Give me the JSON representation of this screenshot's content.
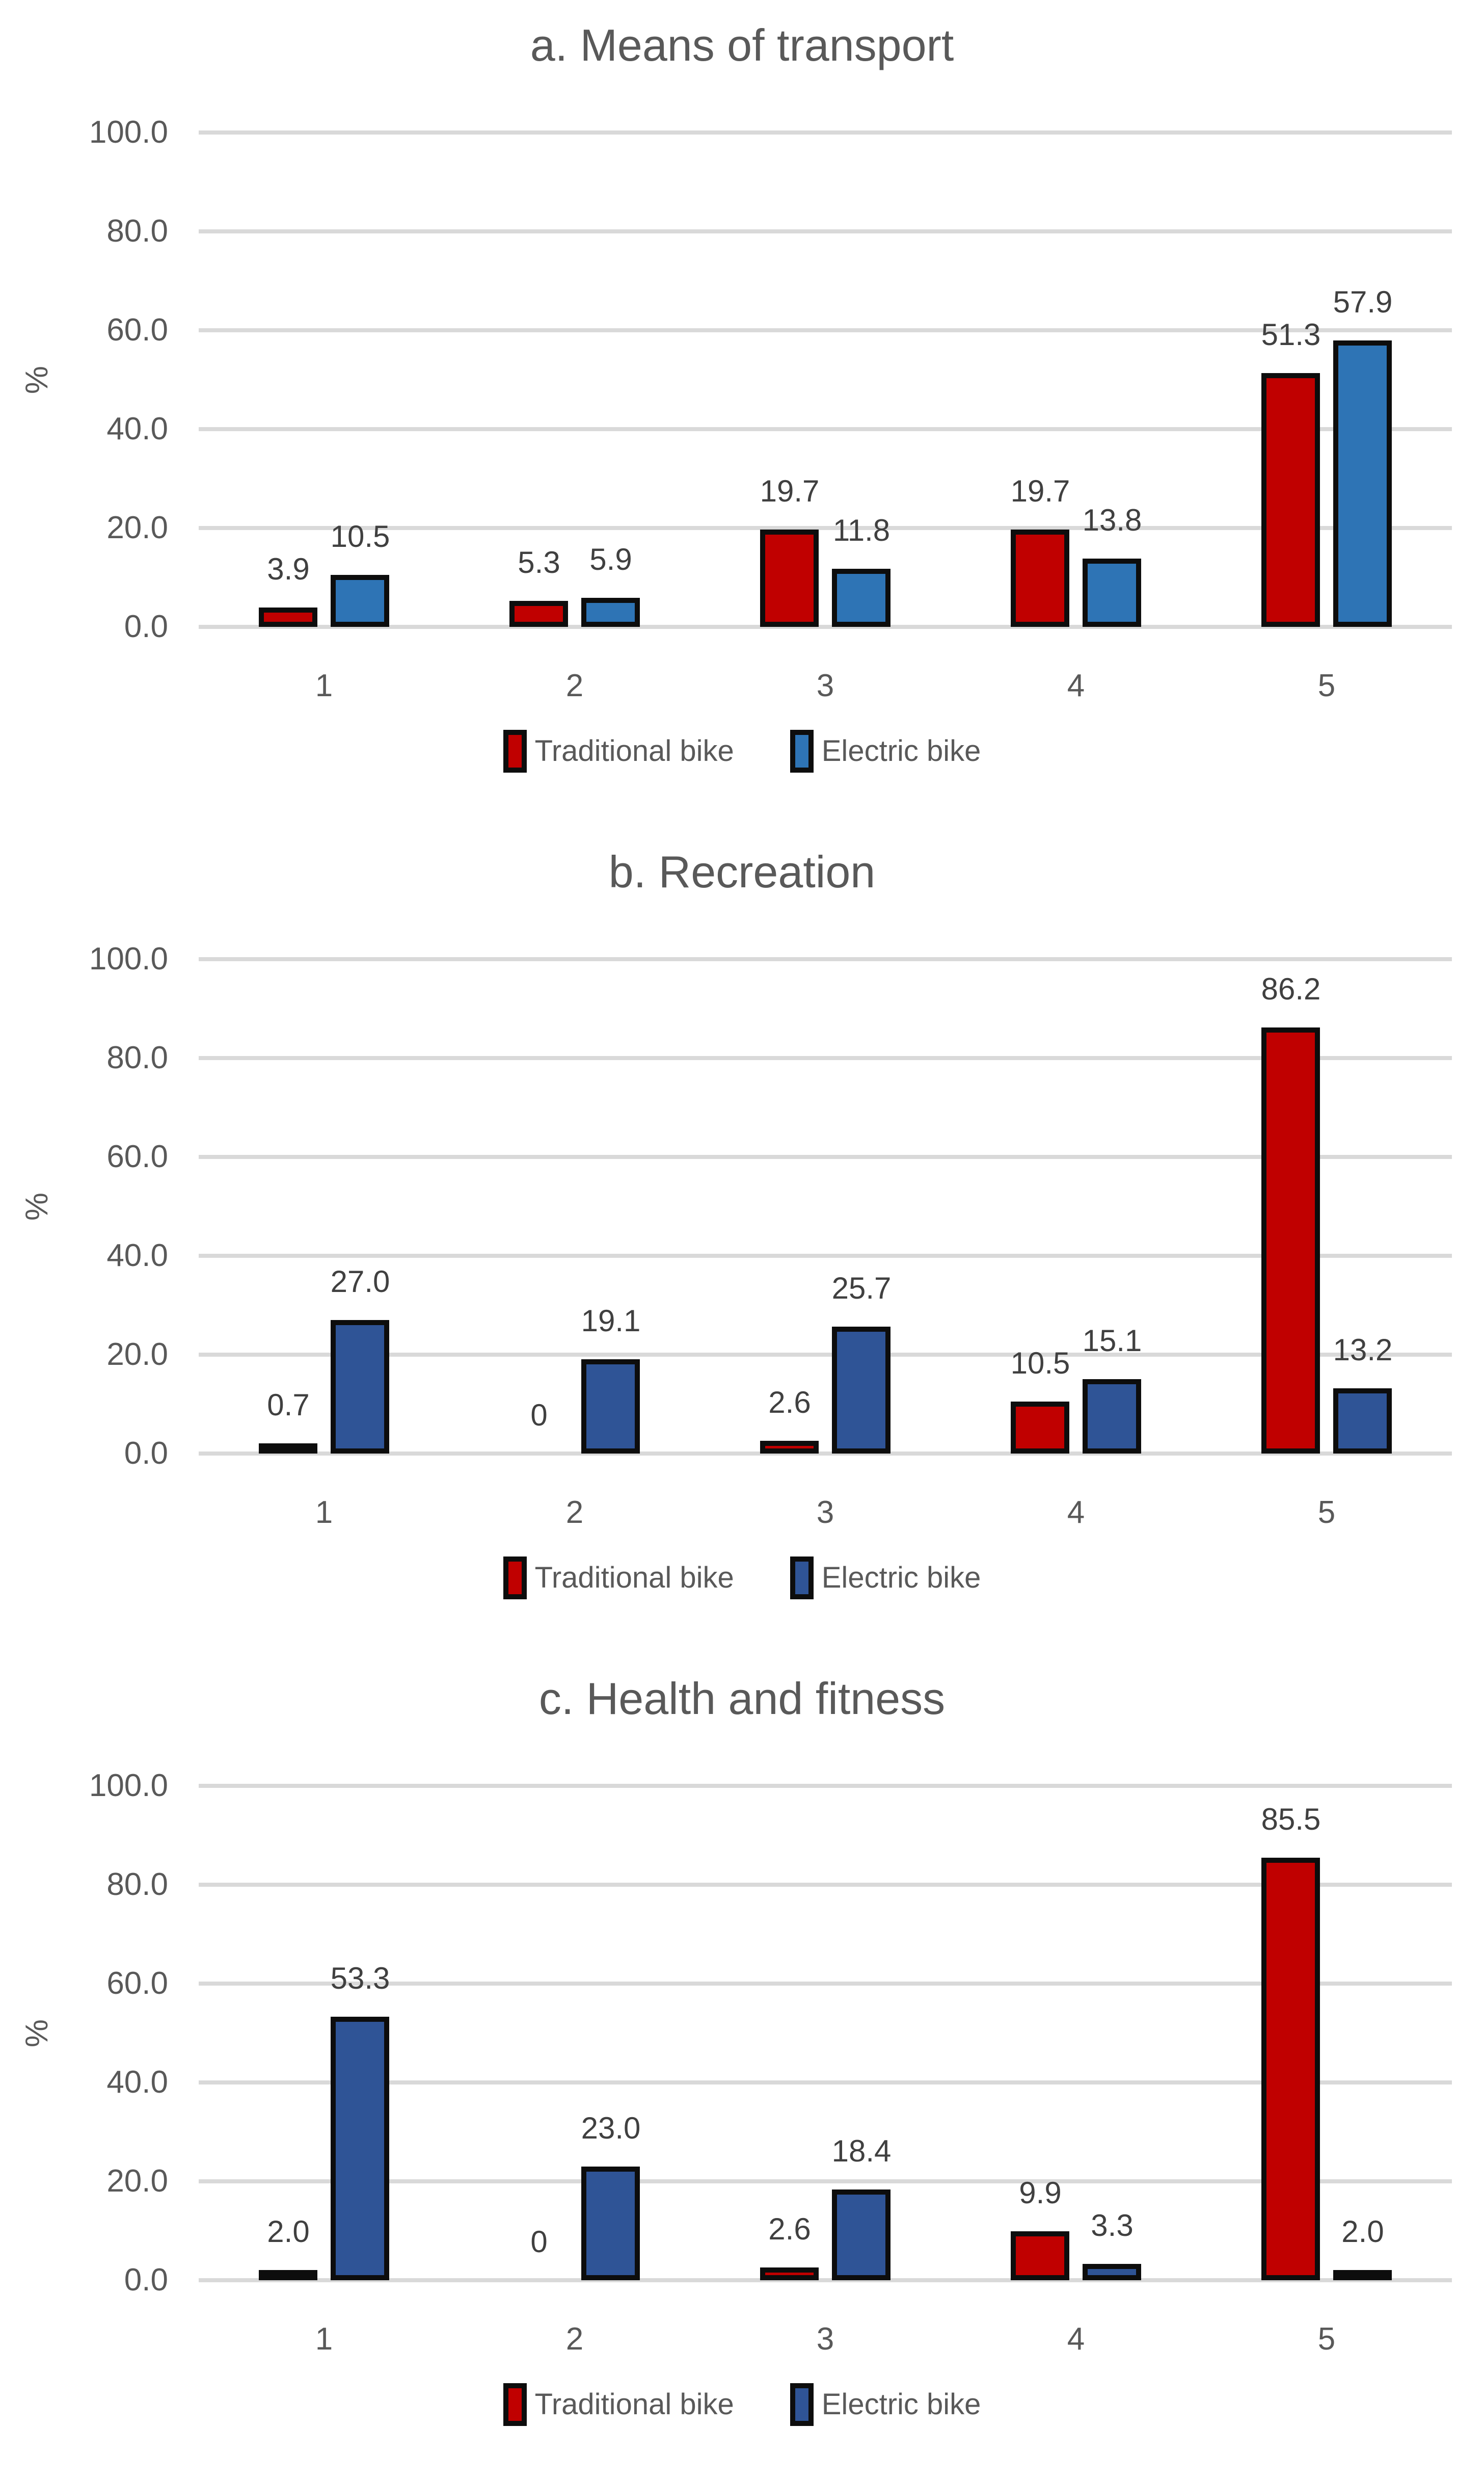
{
  "colors": {
    "traditional_red": "#C00000",
    "electric_blue_light": "#2E74B5",
    "electric_blue_dark": "#2F5496",
    "bar_border": "#0D0D0D",
    "gridline": "#D9D9D9",
    "axis_text": "#595959",
    "data_label_text": "#404040",
    "background": "#FFFFFF"
  },
  "chart_data": [
    {
      "type": "bar",
      "title": "a. Means of transport",
      "ylabel": "%",
      "xlabel": "",
      "ylim": [
        0,
        100
      ],
      "yticks": [
        "100.0",
        "80.0",
        "60.0",
        "40.0",
        "20.0",
        "0.0"
      ],
      "grid": true,
      "legend_position": "bottom",
      "categories": [
        "1",
        "2",
        "3",
        "4",
        "5"
      ],
      "series": [
        {
          "name": "Traditional bike",
          "color": "#C00000",
          "values": [
            3.9,
            5.3,
            19.7,
            19.7,
            51.3
          ],
          "labels": [
            "3.9",
            "5.3",
            "19.7",
            "19.7",
            "51.3"
          ]
        },
        {
          "name": "Electric bike",
          "color": "#2E74B5",
          "values": [
            10.5,
            5.9,
            11.8,
            13.8,
            57.9
          ],
          "labels": [
            "10.5",
            "5.9",
            "11.8",
            "13.8",
            "57.9"
          ]
        }
      ]
    },
    {
      "type": "bar",
      "title": "b. Recreation",
      "ylabel": "%",
      "xlabel": "",
      "ylim": [
        0,
        100
      ],
      "yticks": [
        "100.0",
        "80.0",
        "60.0",
        "40.0",
        "20.0",
        "0.0"
      ],
      "grid": true,
      "legend_position": "bottom",
      "categories": [
        "1",
        "2",
        "3",
        "4",
        "5"
      ],
      "series": [
        {
          "name": "Traditional bike",
          "color": "#C00000",
          "values": [
            0.7,
            0,
            2.6,
            10.5,
            86.2
          ],
          "labels": [
            "0.7",
            "0",
            "2.6",
            "10.5",
            "86.2"
          ]
        },
        {
          "name": "Electric bike",
          "color": "#2F5496",
          "values": [
            27.0,
            19.1,
            25.7,
            15.1,
            13.2
          ],
          "labels": [
            "27.0",
            "19.1",
            "25.7",
            "15.1",
            "13.2"
          ]
        }
      ]
    },
    {
      "type": "bar",
      "title": "c. Health and fitness",
      "ylabel": "%",
      "xlabel": "",
      "ylim": [
        0,
        100
      ],
      "yticks": [
        "100.0",
        "80.0",
        "60.0",
        "40.0",
        "20.0",
        "0.0"
      ],
      "grid": true,
      "legend_position": "bottom",
      "categories": [
        "1",
        "2",
        "3",
        "4",
        "5"
      ],
      "series": [
        {
          "name": "Traditional bike",
          "color": "#C00000",
          "values": [
            2.0,
            0,
            2.6,
            9.9,
            85.5
          ],
          "labels": [
            "2.0",
            "0",
            "2.6",
            "9.9",
            "85.5"
          ]
        },
        {
          "name": "Electric bike",
          "color": "#2F5496",
          "values": [
            53.3,
            23.0,
            18.4,
            3.3,
            2.0
          ],
          "labels": [
            "53.3",
            "23.0",
            "18.4",
            "3.3",
            "2.0"
          ]
        }
      ]
    }
  ]
}
